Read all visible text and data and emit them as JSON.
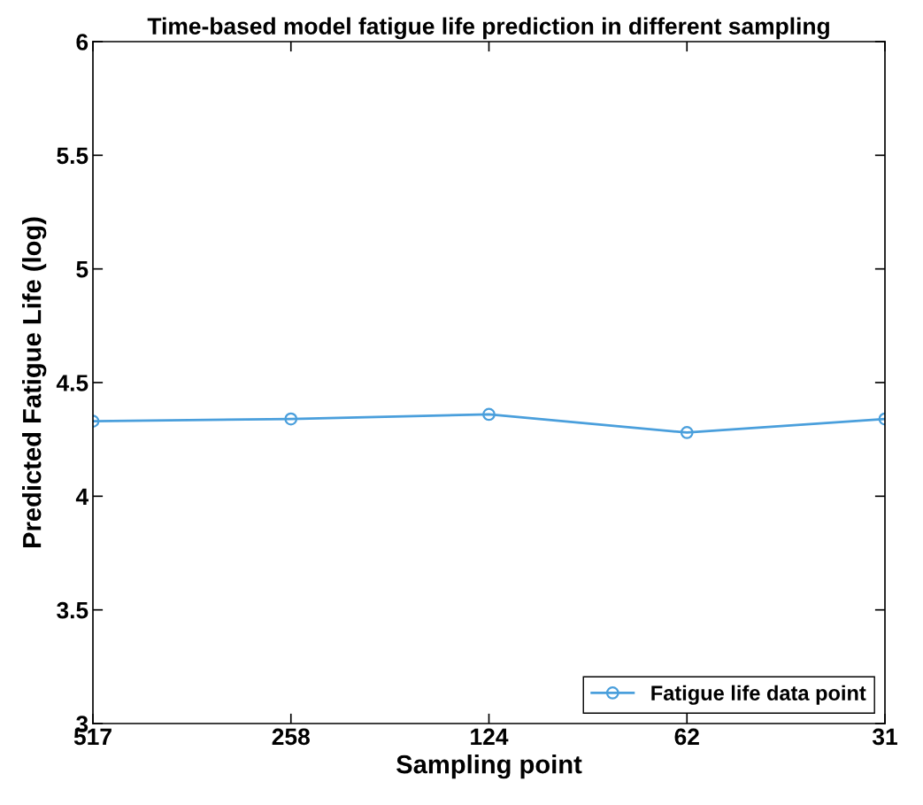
{
  "chart_data": {
    "type": "line",
    "title": "Time-based model fatigue life prediction in different sampling",
    "xlabel": "Sampling point",
    "ylabel": "Predicted Fatigue Life (log)",
    "categories": [
      "517",
      "258",
      "124",
      "62",
      "31"
    ],
    "series": [
      {
        "name": "Fatigue life data point",
        "color": "#4a9fdc",
        "values": [
          4.33,
          4.34,
          4.36,
          4.28,
          4.34
        ]
      }
    ],
    "ylim": [
      3,
      6
    ],
    "yticks": [
      3,
      3.5,
      4,
      4.5,
      5,
      5.5,
      6
    ],
    "grid": false,
    "legend": "bottom right",
    "marker": "circle",
    "line_style": "solid"
  }
}
